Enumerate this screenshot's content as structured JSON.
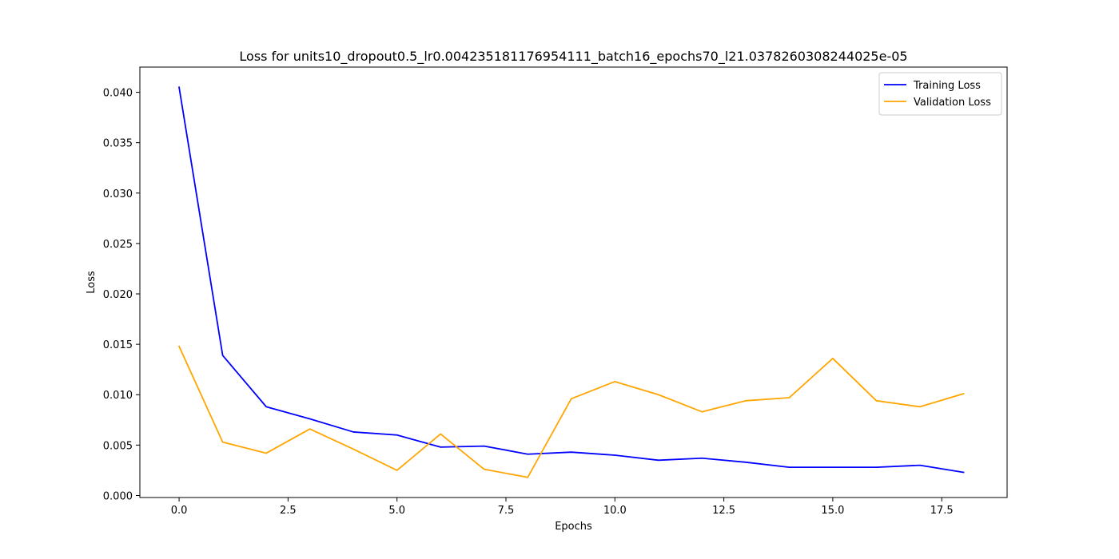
{
  "chart_data": {
    "type": "line",
    "title": "Loss for units10_dropout0.5_lr0.004235181176954111_batch16_epochs70_l21.0378260308244025e-05",
    "xlabel": "Epochs",
    "ylabel": "Loss",
    "xlim": [
      -0.9,
      19.0
    ],
    "ylim": [
      -0.0002,
      0.0425
    ],
    "xticks": [
      0.0,
      2.5,
      5.0,
      7.5,
      10.0,
      12.5,
      15.0,
      17.5
    ],
    "xtick_labels": [
      "0.0",
      "2.5",
      "5.0",
      "7.5",
      "10.0",
      "12.5",
      "15.0",
      "17.5"
    ],
    "yticks": [
      0.0,
      0.005,
      0.01,
      0.015,
      0.02,
      0.025,
      0.03,
      0.035,
      0.04
    ],
    "ytick_labels": [
      "0.000",
      "0.005",
      "0.010",
      "0.015",
      "0.020",
      "0.025",
      "0.030",
      "0.035",
      "0.040"
    ],
    "grid": false,
    "legend_position": "top-right",
    "x": [
      0,
      1,
      2,
      3,
      4,
      5,
      6,
      7,
      8,
      9,
      10,
      11,
      12,
      13,
      14,
      15,
      16,
      17,
      18
    ],
    "series": [
      {
        "name": "Training Loss",
        "color": "#0000ff",
        "values": [
          0.0405,
          0.0139,
          0.0088,
          0.0076,
          0.0063,
          0.006,
          0.0048,
          0.0049,
          0.0041,
          0.0043,
          0.004,
          0.0035,
          0.0037,
          0.0033,
          0.0028,
          0.0028,
          0.0028,
          0.003,
          0.0023
        ]
      },
      {
        "name": "Validation Loss",
        "color": "#ffa500",
        "values": [
          0.0148,
          0.0053,
          0.0042,
          0.0066,
          0.0046,
          0.0025,
          0.0061,
          0.0026,
          0.0018,
          0.0096,
          0.0113,
          0.01,
          0.0083,
          0.0094,
          0.0097,
          0.0136,
          0.0094,
          0.0088,
          0.0101
        ]
      }
    ]
  }
}
